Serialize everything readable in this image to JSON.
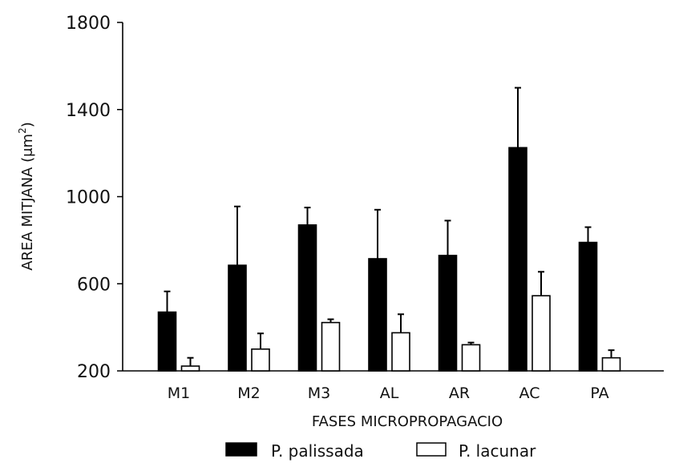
{
  "chart_data": {
    "type": "bar",
    "categories": [
      "M1",
      "M2",
      "M3",
      "AL",
      "AR",
      "AC",
      "PA"
    ],
    "series": [
      {
        "name": "P. palissada",
        "values": [
          470,
          685,
          870,
          715,
          730,
          1225,
          790
        ],
        "errors": [
          95,
          270,
          80,
          225,
          160,
          275,
          70
        ],
        "fill": "#000000"
      },
      {
        "name": "P. lacunar",
        "values": [
          222,
          300,
          422,
          375,
          320,
          545,
          260
        ],
        "errors": [
          38,
          72,
          15,
          85,
          10,
          110,
          35
        ],
        "fill": "#ffffff"
      }
    ],
    "xlabel": "FASES MICROPROPAGACIO",
    "ylabel_main": "AREA MITJANA (μm",
    "ylabel_sup": "2",
    "ylabel_end": ")",
    "ylim": [
      200,
      1800
    ],
    "yticks": [
      200,
      600,
      1000,
      1400,
      1800
    ],
    "grid": false,
    "legend_position": "bottom"
  }
}
